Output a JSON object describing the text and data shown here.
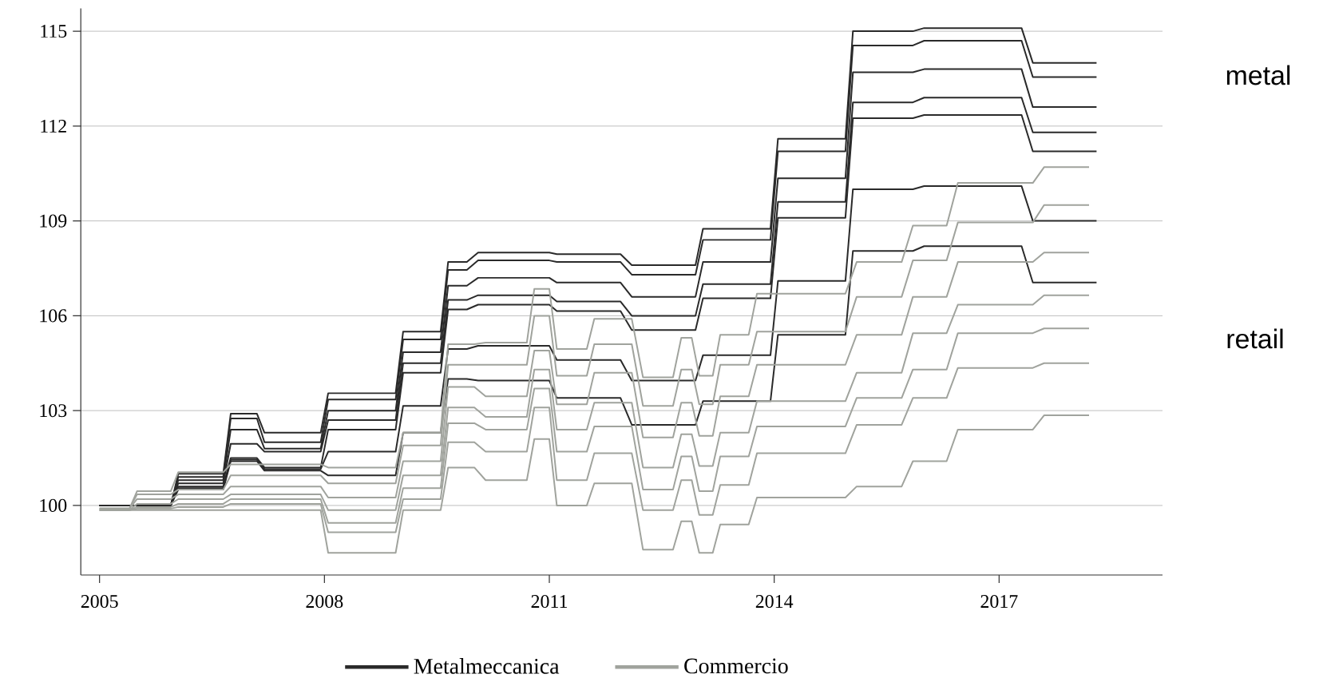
{
  "chart_data": {
    "type": "line",
    "xlim": [
      2004.75,
      2019.18
    ],
    "ylim": [
      97.8,
      115.72
    ],
    "xticks": [
      2005,
      2008,
      2011,
      2014,
      2017
    ],
    "yticks": [
      100,
      103,
      106,
      109,
      112,
      115
    ],
    "grid": "y",
    "legend": "bottom",
    "annotations": [
      "metal",
      "retail"
    ],
    "series": [
      {
        "name": "Metalmeccanica",
        "color": "#2a2a2a",
        "x": [
          2005.0,
          2005.95,
          2006.05,
          2006.65,
          2006.75,
          2007.1,
          2007.2,
          2007.95,
          2008.05,
          2008.95,
          2009.05,
          2009.55,
          2009.65,
          2009.9,
          2010.05,
          2011.0,
          2011.1,
          2011.95,
          2012.1,
          2012.95,
          2013.05,
          2013.95,
          2014.05,
          2014.95,
          2015.05,
          2015.85,
          2016.0,
          2017.3,
          2017.45,
          2018.3
        ],
        "values": [
          100,
          100,
          101.0,
          101.0,
          102.9,
          102.9,
          102.3,
          102.3,
          103.55,
          103.55,
          105.5,
          105.5,
          107.7,
          107.7,
          108.0,
          108.0,
          107.95,
          107.95,
          107.6,
          107.6,
          108.75,
          108.75,
          111.6,
          111.6,
          115.0,
          115.0,
          115.1,
          115.1,
          114.0,
          114.0
        ]
      },
      {
        "color": "#2a2a2a",
        "x": [
          2005.0,
          2005.95,
          2006.05,
          2006.65,
          2006.75,
          2007.1,
          2007.2,
          2007.95,
          2008.05,
          2008.95,
          2009.05,
          2009.55,
          2009.65,
          2009.9,
          2010.05,
          2011.0,
          2011.1,
          2011.95,
          2012.1,
          2012.95,
          2013.05,
          2013.95,
          2014.05,
          2014.95,
          2015.05,
          2015.85,
          2016.0,
          2017.3,
          2017.45,
          2018.3
        ],
        "values": [
          100,
          100,
          100.9,
          100.9,
          102.75,
          102.75,
          102.0,
          102.0,
          103.35,
          103.35,
          105.25,
          105.25,
          107.45,
          107.45,
          107.75,
          107.75,
          107.7,
          107.7,
          107.3,
          107.3,
          108.4,
          108.4,
          111.2,
          111.2,
          114.55,
          114.55,
          114.7,
          114.7,
          113.55,
          113.55
        ]
      },
      {
        "color": "#2a2a2a",
        "x": [
          2005.0,
          2005.95,
          2006.05,
          2006.65,
          2006.75,
          2007.1,
          2007.2,
          2007.95,
          2008.05,
          2008.95,
          2009.05,
          2009.55,
          2009.65,
          2009.9,
          2010.05,
          2011.0,
          2011.1,
          2011.95,
          2012.1,
          2012.95,
          2013.05,
          2013.95,
          2014.05,
          2014.95,
          2015.05,
          2015.85,
          2016.0,
          2017.3,
          2017.45,
          2018.3
        ],
        "values": [
          100,
          100,
          100.8,
          100.8,
          102.4,
          102.4,
          101.8,
          101.8,
          103.0,
          103.0,
          104.85,
          104.85,
          106.95,
          106.95,
          107.2,
          107.2,
          107.05,
          107.05,
          106.6,
          106.6,
          107.7,
          107.7,
          110.35,
          110.35,
          113.7,
          113.7,
          113.8,
          113.8,
          112.6,
          112.6
        ]
      },
      {
        "color": "#2a2a2a",
        "x": [
          2005.0,
          2005.95,
          2006.05,
          2006.65,
          2006.75,
          2007.1,
          2007.2,
          2007.95,
          2008.05,
          2008.95,
          2009.05,
          2009.55,
          2009.65,
          2009.9,
          2010.05,
          2011.0,
          2011.1,
          2011.95,
          2012.1,
          2012.95,
          2013.05,
          2013.95,
          2014.05,
          2014.95,
          2015.05,
          2015.85,
          2016.0,
          2017.3,
          2017.45,
          2018.3
        ],
        "values": [
          100,
          100,
          100.7,
          100.7,
          101.95,
          101.95,
          101.7,
          101.7,
          102.7,
          102.7,
          104.5,
          104.5,
          106.5,
          106.5,
          106.65,
          106.65,
          106.45,
          106.45,
          106.0,
          106.0,
          107.0,
          107.0,
          109.6,
          109.6,
          112.75,
          112.75,
          112.9,
          112.9,
          111.8,
          111.8
        ]
      },
      {
        "color": "#2a2a2a",
        "x": [
          2005.0,
          2005.95,
          2006.05,
          2006.65,
          2006.75,
          2007.1,
          2007.2,
          2007.95,
          2008.05,
          2008.95,
          2009.05,
          2009.55,
          2009.65,
          2009.9,
          2010.05,
          2011.0,
          2011.1,
          2011.95,
          2012.1,
          2012.95,
          2013.05,
          2013.95,
          2014.05,
          2014.95,
          2015.05,
          2015.85,
          2016.0,
          2017.3,
          2017.45,
          2018.3
        ],
        "values": [
          100,
          100,
          100.6,
          100.6,
          101.5,
          101.5,
          101.2,
          101.2,
          102.4,
          102.4,
          104.2,
          104.2,
          106.2,
          106.2,
          106.35,
          106.35,
          106.15,
          106.15,
          105.55,
          105.55,
          106.55,
          106.55,
          109.1,
          109.1,
          112.25,
          112.25,
          112.35,
          112.35,
          111.2,
          111.2
        ]
      },
      {
        "color": "#2a2a2a",
        "x": [
          2005.0,
          2005.95,
          2006.05,
          2006.65,
          2006.75,
          2007.1,
          2007.2,
          2007.95,
          2008.05,
          2008.95,
          2009.05,
          2009.55,
          2009.65,
          2009.9,
          2010.05,
          2011.0,
          2011.1,
          2011.95,
          2012.1,
          2012.95,
          2013.05,
          2013.95,
          2014.05,
          2014.95,
          2015.05,
          2015.85,
          2016.0,
          2017.3,
          2017.45,
          2018.3
        ],
        "values": [
          100,
          100,
          100.55,
          100.55,
          101.45,
          101.45,
          101.15,
          101.15,
          101.7,
          101.7,
          103.15,
          103.15,
          104.95,
          104.95,
          105.05,
          105.05,
          104.6,
          104.6,
          103.95,
          103.95,
          104.75,
          104.75,
          107.1,
          107.1,
          110.0,
          110.0,
          110.1,
          110.1,
          109.0,
          109.0
        ]
      },
      {
        "color": "#2a2a2a",
        "x": [
          2005.0,
          2005.95,
          2006.05,
          2006.65,
          2006.75,
          2007.1,
          2007.2,
          2007.95,
          2008.05,
          2008.95,
          2009.05,
          2009.55,
          2009.65,
          2009.9,
          2010.05,
          2011.0,
          2011.1,
          2011.95,
          2012.1,
          2012.95,
          2013.05,
          2013.95,
          2014.05,
          2014.95,
          2015.05,
          2015.85,
          2016.0,
          2017.3,
          2017.45,
          2018.3
        ],
        "values": [
          100,
          100,
          100.5,
          100.5,
          101.4,
          101.4,
          101.1,
          101.1,
          100.95,
          100.95,
          102.3,
          102.3,
          104.0,
          104.0,
          103.95,
          103.95,
          103.4,
          103.4,
          102.55,
          102.55,
          103.3,
          103.3,
          105.4,
          105.4,
          108.05,
          108.05,
          108.2,
          108.2,
          107.05,
          107.05
        ]
      },
      {
        "name": "Commercio",
        "color": "#a0a39d",
        "x": [
          2005.0,
          2005.4,
          2005.5,
          2005.95,
          2006.05,
          2006.65,
          2006.75,
          2007.95,
          2008.05,
          2008.95,
          2009.05,
          2009.55,
          2009.65,
          2010.0,
          2010.15,
          2010.7,
          2010.8,
          2011.0,
          2011.1,
          2011.5,
          2011.6,
          2012.1,
          2012.25,
          2012.65,
          2012.76,
          2012.9,
          2013.0,
          2013.18,
          2013.28,
          2013.66,
          2013.77,
          2014.95,
          2015.1,
          2015.7,
          2015.85,
          2016.3,
          2016.45,
          2017.45,
          2017.6,
          2018.2
        ],
        "values": [
          99.9,
          99.9,
          100.45,
          100.45,
          101.05,
          101.05,
          101.3,
          101.3,
          101.2,
          101.2,
          102.3,
          102.3,
          105.1,
          105.1,
          105.15,
          105.15,
          106.85,
          106.85,
          104.95,
          104.95,
          105.9,
          105.9,
          104.05,
          104.05,
          105.3,
          105.3,
          104.1,
          104.1,
          105.4,
          105.4,
          106.7,
          106.7,
          107.7,
          107.7,
          108.85,
          108.85,
          110.2,
          110.2,
          110.7,
          110.7
        ]
      },
      {
        "color": "#a0a39d",
        "x": [
          2005.0,
          2005.4,
          2005.5,
          2005.95,
          2006.05,
          2006.65,
          2006.75,
          2007.95,
          2008.05,
          2008.95,
          2009.05,
          2009.55,
          2009.65,
          2010.0,
          2010.15,
          2010.7,
          2010.8,
          2011.0,
          2011.1,
          2011.5,
          2011.6,
          2012.1,
          2012.25,
          2012.65,
          2012.76,
          2012.9,
          2013.0,
          2013.18,
          2013.28,
          2013.66,
          2013.77,
          2014.95,
          2015.1,
          2015.7,
          2015.85,
          2016.3,
          2016.45,
          2017.45,
          2017.6,
          2018.2
        ],
        "values": [
          99.9,
          99.9,
          100.35,
          100.35,
          100.5,
          100.5,
          100.95,
          100.95,
          100.7,
          100.7,
          101.9,
          101.9,
          104.45,
          104.45,
          104.45,
          104.45,
          106.0,
          106.0,
          104.1,
          104.1,
          105.1,
          105.1,
          103.15,
          103.15,
          104.3,
          104.3,
          103.2,
          103.2,
          104.45,
          104.45,
          105.5,
          105.5,
          106.6,
          106.6,
          107.75,
          107.75,
          108.95,
          108.95,
          109.5,
          109.5
        ]
      },
      {
        "color": "#a0a39d",
        "x": [
          2005.0,
          2005.4,
          2005.5,
          2005.95,
          2006.05,
          2006.65,
          2006.75,
          2007.95,
          2008.05,
          2008.95,
          2009.05,
          2009.55,
          2009.65,
          2010.0,
          2010.15,
          2010.7,
          2010.8,
          2011.0,
          2011.1,
          2011.5,
          2011.6,
          2012.1,
          2012.25,
          2012.65,
          2012.76,
          2012.9,
          2013.0,
          2013.18,
          2013.28,
          2013.66,
          2013.77,
          2014.95,
          2015.1,
          2015.7,
          2015.85,
          2016.3,
          2016.45,
          2017.45,
          2017.6,
          2018.2
        ],
        "values": [
          99.9,
          99.9,
          100.2,
          100.2,
          100.35,
          100.35,
          100.6,
          100.6,
          100.25,
          100.25,
          101.4,
          101.4,
          103.75,
          103.75,
          103.45,
          103.45,
          104.9,
          104.9,
          103.2,
          103.2,
          104.2,
          104.2,
          102.15,
          102.15,
          103.25,
          103.25,
          102.2,
          102.2,
          103.45,
          103.45,
          104.45,
          104.45,
          105.4,
          105.4,
          106.6,
          106.6,
          107.7,
          107.7,
          108.0,
          108.0
        ]
      },
      {
        "color": "#a0a39d",
        "x": [
          2005.0,
          2005.4,
          2005.5,
          2005.95,
          2006.05,
          2006.65,
          2006.75,
          2007.95,
          2008.05,
          2008.95,
          2009.05,
          2009.55,
          2009.65,
          2010.0,
          2010.15,
          2010.7,
          2010.8,
          2011.0,
          2011.1,
          2011.5,
          2011.6,
          2012.1,
          2012.25,
          2012.65,
          2012.76,
          2012.9,
          2013.0,
          2013.18,
          2013.28,
          2013.66,
          2013.77,
          2014.95,
          2015.1,
          2015.7,
          2015.85,
          2016.3,
          2016.45,
          2017.45,
          2017.6,
          2018.2
        ],
        "values": [
          99.85,
          99.85,
          100.05,
          100.05,
          100.2,
          100.2,
          100.35,
          100.35,
          99.85,
          99.85,
          100.95,
          100.95,
          103.1,
          103.1,
          102.8,
          102.8,
          104.3,
          104.3,
          102.4,
          102.4,
          103.25,
          103.25,
          101.2,
          101.2,
          102.25,
          102.25,
          101.25,
          101.25,
          102.3,
          102.3,
          103.3,
          103.3,
          104.2,
          104.2,
          105.45,
          105.45,
          106.35,
          106.35,
          106.65,
          106.65
        ]
      },
      {
        "color": "#a0a39d",
        "x": [
          2005.0,
          2005.4,
          2005.5,
          2005.95,
          2006.05,
          2006.65,
          2006.75,
          2007.95,
          2008.05,
          2008.95,
          2009.05,
          2009.55,
          2009.65,
          2010.0,
          2010.15,
          2010.7,
          2010.8,
          2011.0,
          2011.1,
          2011.5,
          2011.6,
          2012.1,
          2012.25,
          2012.65,
          2012.76,
          2012.9,
          2013.0,
          2013.18,
          2013.28,
          2013.66,
          2013.77,
          2014.95,
          2015.1,
          2015.7,
          2015.85,
          2016.3,
          2016.45,
          2017.45,
          2017.6,
          2018.2
        ],
        "values": [
          99.85,
          99.85,
          99.95,
          99.95,
          100.05,
          100.05,
          100.2,
          100.2,
          99.45,
          99.45,
          100.55,
          100.55,
          102.6,
          102.6,
          102.4,
          102.4,
          103.7,
          103.7,
          101.7,
          101.7,
          102.5,
          102.5,
          100.5,
          100.5,
          101.55,
          101.55,
          100.45,
          100.45,
          101.55,
          101.55,
          102.5,
          102.5,
          103.4,
          103.4,
          104.3,
          104.3,
          105.45,
          105.45,
          105.6,
          105.6
        ]
      },
      {
        "color": "#a0a39d",
        "x": [
          2005.0,
          2005.4,
          2005.5,
          2005.95,
          2006.05,
          2006.65,
          2006.75,
          2007.95,
          2008.05,
          2008.95,
          2009.05,
          2009.55,
          2009.65,
          2010.0,
          2010.15,
          2010.7,
          2010.8,
          2011.0,
          2011.1,
          2011.5,
          2011.6,
          2012.1,
          2012.25,
          2012.65,
          2012.76,
          2012.9,
          2013.0,
          2013.18,
          2013.28,
          2013.66,
          2013.77,
          2014.95,
          2015.1,
          2015.7,
          2015.85,
          2016.3,
          2016.45,
          2017.45,
          2017.6,
          2018.2
        ],
        "values": [
          99.85,
          99.85,
          99.9,
          99.9,
          99.95,
          99.95,
          100.05,
          100.05,
          99.15,
          99.15,
          100.2,
          100.2,
          102.0,
          102.0,
          101.7,
          101.7,
          103.1,
          103.1,
          100.8,
          100.8,
          101.65,
          101.65,
          99.85,
          99.85,
          100.8,
          100.8,
          99.7,
          99.7,
          100.65,
          100.65,
          101.65,
          101.65,
          102.55,
          102.55,
          103.4,
          103.4,
          104.35,
          104.35,
          104.5,
          104.5
        ]
      },
      {
        "color": "#a0a39d",
        "x": [
          2005.0,
          2005.4,
          2005.5,
          2005.95,
          2006.05,
          2006.65,
          2006.75,
          2007.95,
          2008.05,
          2008.95,
          2009.05,
          2009.55,
          2009.65,
          2010.0,
          2010.15,
          2010.7,
          2010.8,
          2011.0,
          2011.1,
          2011.5,
          2011.6,
          2012.1,
          2012.25,
          2012.65,
          2012.76,
          2012.9,
          2013.0,
          2013.18,
          2013.28,
          2013.66,
          2013.77,
          2014.95,
          2015.1,
          2015.7,
          2015.85,
          2016.3,
          2016.45,
          2017.45,
          2017.6,
          2018.2
        ],
        "values": [
          99.85,
          99.85,
          99.85,
          99.85,
          99.85,
          99.85,
          99.85,
          99.85,
          98.5,
          98.5,
          99.85,
          99.85,
          101.2,
          101.2,
          100.8,
          100.8,
          102.1,
          102.1,
          100.0,
          100.0,
          100.7,
          100.7,
          98.6,
          98.6,
          99.5,
          99.5,
          98.5,
          98.5,
          99.4,
          99.4,
          100.25,
          100.25,
          100.6,
          100.6,
          101.4,
          101.4,
          102.4,
          102.4,
          102.85,
          102.85
        ]
      }
    ]
  }
}
